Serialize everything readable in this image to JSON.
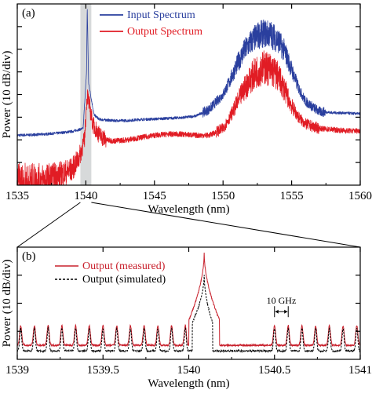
{
  "chart_data": [
    {
      "panel_label": "(a)",
      "type": "line",
      "xlabel": "Wavelength (nm)",
      "ylabel": "Power (10 dB/div)",
      "xlim": [
        1535,
        1560
      ],
      "xticks": [
        "1535",
        "1540",
        "1545",
        "1550",
        "1555",
        "1560"
      ],
      "ylim": [
        -80,
        0
      ],
      "y_divisions": 8,
      "shaded_band_nm": [
        1539.6,
        1540.4
      ],
      "grid": false,
      "legend_position": "top-left",
      "series": [
        {
          "name": "Input Spectrum",
          "color": "#2a3f9e",
          "x": [
            1535,
            1536,
            1537,
            1538,
            1539,
            1539.8,
            1540.05,
            1540.1,
            1540.2,
            1540.6,
            1541,
            1542,
            1543,
            1544,
            1545,
            1546,
            1547,
            1548,
            1549,
            1550,
            1550.5,
            1551,
            1551.5,
            1552,
            1552.5,
            1553,
            1553.5,
            1554,
            1554.5,
            1555,
            1555.5,
            1556,
            1557,
            1558,
            1559,
            1560
          ],
          "y": [
            -58,
            -57.8,
            -57.5,
            -57,
            -56.3,
            -55,
            -30,
            -1,
            -35,
            -49,
            -51,
            -51.5,
            -51.5,
            -51,
            -50.8,
            -50.5,
            -50.2,
            -49.5,
            -46.5,
            -40,
            -34,
            -27,
            -21,
            -17,
            -14,
            -13,
            -13.5,
            -16,
            -21,
            -29,
            -37,
            -43,
            -47.5,
            -48,
            -48.2,
            -48.5
          ],
          "ripple_region": [
            1548.5,
            1557.5
          ]
        },
        {
          "name": "Output Spectrum",
          "color": "#e11c24",
          "x": [
            1535,
            1536,
            1537,
            1538,
            1539,
            1539.5,
            1539.9,
            1540.05,
            1540.1,
            1540.2,
            1540.5,
            1541,
            1541.5,
            1542,
            1543,
            1544,
            1545,
            1546,
            1547,
            1548,
            1549,
            1550,
            1550.5,
            1551,
            1551.5,
            1552,
            1552.5,
            1553,
            1553.5,
            1554,
            1554.5,
            1555,
            1555.5,
            1556,
            1557,
            1558,
            1559,
            1560
          ],
          "y": [
            -80,
            -79,
            -78,
            -76,
            -73,
            -68,
            -60,
            -44,
            -40,
            -43,
            -53,
            -58,
            -60,
            -60.5,
            -60,
            -59,
            -58,
            -57.5,
            -57.5,
            -58,
            -58,
            -55,
            -50,
            -44,
            -38,
            -33,
            -29.5,
            -28,
            -29,
            -32,
            -38,
            -45,
            -50,
            -53,
            -55,
            -55.5,
            -56,
            -56
          ]
        }
      ]
    },
    {
      "panel_label": "(b)",
      "type": "line",
      "xlabel": "Wavelength (nm)",
      "ylabel": "Power (10 dB/div)",
      "xlim": [
        1539,
        1541
      ],
      "xticks": [
        "1539",
        "1539.5",
        "1540",
        "1540.5",
        "1541"
      ],
      "ylim": [
        -40,
        0
      ],
      "y_divisions": 4,
      "grid": false,
      "legend_position": "top-left",
      "comb_spacing_nm": 0.08,
      "annotation": {
        "text": "10 GHz",
        "x": [
          1540.5,
          1540.58
        ],
        "y": -23
      },
      "series": [
        {
          "name": "Output (measured)",
          "color": "#c8202c",
          "style": "solid",
          "comb_peaks_x": [
            1539.02,
            1539.1,
            1539.18,
            1539.26,
            1539.34,
            1539.42,
            1539.5,
            1539.58,
            1539.66,
            1539.74,
            1539.82,
            1539.9,
            1539.98,
            1540.5,
            1540.58,
            1540.66,
            1540.74,
            1540.82,
            1540.9,
            1540.98
          ],
          "comb_peak_level": -28,
          "floor_level": -35,
          "main_peak": {
            "x": 1540.09,
            "y": -2,
            "shoulder_start": 1540.0,
            "shoulder_end": 1540.18
          }
        },
        {
          "name": "Output (simulated)",
          "color": "#000000",
          "style": "dashed",
          "comb_peaks_x": [
            1539.02,
            1539.1,
            1539.18,
            1539.26,
            1539.34,
            1539.42,
            1539.5,
            1539.58,
            1539.66,
            1539.74,
            1539.82,
            1539.9,
            1539.98,
            1540.5,
            1540.58,
            1540.66,
            1540.74,
            1540.82,
            1540.9,
            1540.98
          ],
          "comb_peak_level": -29,
          "floor_level": -37,
          "main_peak": {
            "x": 1540.09,
            "y": -10,
            "shoulder_start": 1540.02,
            "shoulder_end": 1540.14
          }
        }
      ]
    }
  ]
}
